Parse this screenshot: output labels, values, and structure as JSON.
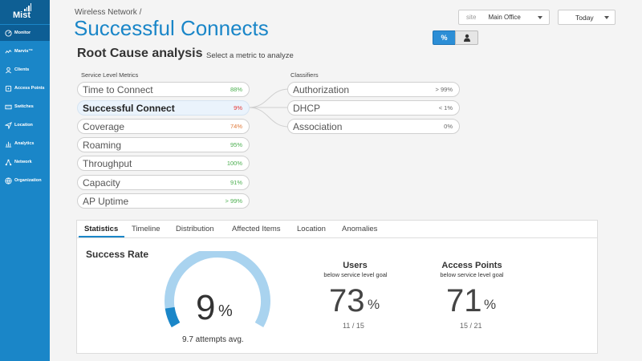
{
  "app": {
    "logo_text": "Mist"
  },
  "sidebar": {
    "items": [
      {
        "label": "Monitor",
        "icon": "monitor-icon",
        "active": true
      },
      {
        "label": "Marvis™",
        "icon": "marvis-icon"
      },
      {
        "label": "Clients",
        "icon": "clients-icon"
      },
      {
        "label": "Access Points",
        "icon": "access-points-icon"
      },
      {
        "label": "Switches",
        "icon": "switches-icon"
      },
      {
        "label": "Location",
        "icon": "location-icon"
      },
      {
        "label": "Analytics",
        "icon": "analytics-icon"
      },
      {
        "label": "Network",
        "icon": "network-icon"
      },
      {
        "label": "Organization",
        "icon": "organization-icon"
      }
    ]
  },
  "header": {
    "breadcrumb": "Wireless Network /",
    "title": "Successful Connects",
    "site_label": "site",
    "site_value": "Main Office",
    "time_value": "Today",
    "toggle_percent": "%"
  },
  "rca": {
    "title": "Root Cause analysis",
    "subtitle": "Select a metric to analyze",
    "slm_label": "Service Level Metrics",
    "classifiers_label": "Classifiers",
    "metrics": [
      {
        "name": "Time to Connect",
        "value": "88%",
        "color": "#4caf50"
      },
      {
        "name": "Successful Connect",
        "value": "9%",
        "color": "#e53935",
        "selected": true
      },
      {
        "name": "Coverage",
        "value": "74%",
        "color": "#e07a3a"
      },
      {
        "name": "Roaming",
        "value": "95%",
        "color": "#4caf50"
      },
      {
        "name": "Throughput",
        "value": "100%",
        "color": "#4caf50"
      },
      {
        "name": "Capacity",
        "value": "91%",
        "color": "#4caf50"
      },
      {
        "name": "AP Uptime",
        "value": "> 99%",
        "color": "#4caf50"
      }
    ],
    "classifiers": [
      {
        "name": "Authorization",
        "value": "> 99%"
      },
      {
        "name": "DHCP",
        "value": "< 1%"
      },
      {
        "name": "Association",
        "value": "0%"
      }
    ]
  },
  "panel": {
    "tabs": [
      "Statistics",
      "Timeline",
      "Distribution",
      "Affected Items",
      "Location",
      "Anomalies"
    ],
    "active_tab": 0,
    "success_title": "Success Rate",
    "success_value": "9",
    "success_unit": "%",
    "success_fraction": 0.09,
    "attempts": "9.7 attempts avg.",
    "users": {
      "title": "Users",
      "sub": "below service level goal",
      "value": "73",
      "unit": "%",
      "fraction": "11 / 15"
    },
    "aps": {
      "title": "Access Points",
      "sub": "below service level goal",
      "value": "71",
      "unit": "%",
      "fraction": "15 / 21"
    }
  },
  "colors": {
    "accent": "#1a86c8",
    "sidebar": "#1a86c8",
    "gauge_fill": "#1a86c8",
    "gauge_track": "#a9d3ef"
  }
}
